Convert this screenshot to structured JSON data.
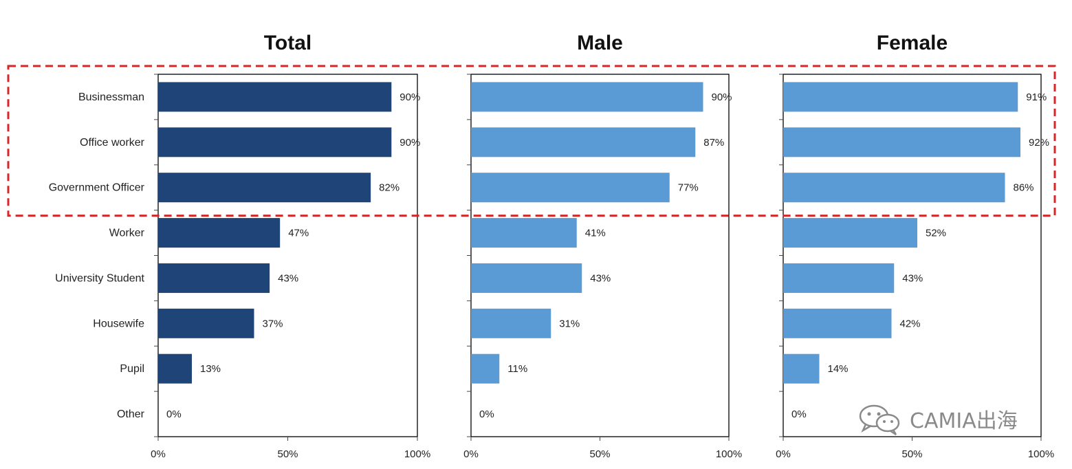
{
  "chart_data": {
    "type": "bar",
    "orientation": "horizontal",
    "categories": [
      "Businessman",
      "Office worker",
      "Government Officer",
      "Worker",
      "University Student",
      "Housewife",
      "Pupil",
      "Other"
    ],
    "series": [
      {
        "name": "Total",
        "values": [
          90,
          90,
          82,
          47,
          43,
          37,
          13,
          0
        ],
        "color": "#1f4578"
      },
      {
        "name": "Male",
        "values": [
          90,
          87,
          77,
          41,
          43,
          31,
          11,
          0
        ],
        "color": "#5b9bd5"
      },
      {
        "name": "Female",
        "values": [
          91,
          92,
          86,
          52,
          43,
          42,
          14,
          0
        ],
        "color": "#5b9bd5"
      }
    ],
    "value_suffix": "%",
    "xlim": [
      0,
      100
    ],
    "xticks": [
      {
        "value": 0,
        "label": "0%"
      },
      {
        "value": 50,
        "label": "50%"
      },
      {
        "value": 100,
        "label": "100%"
      }
    ],
    "highlight": {
      "categories": [
        "Businessman",
        "Office worker",
        "Government Officer"
      ],
      "style": "dashed-box",
      "color": "#d62728"
    }
  },
  "watermark": {
    "text": "CAMIA出海",
    "icon": "wechat-icon",
    "color": "#8a8a8a"
  }
}
